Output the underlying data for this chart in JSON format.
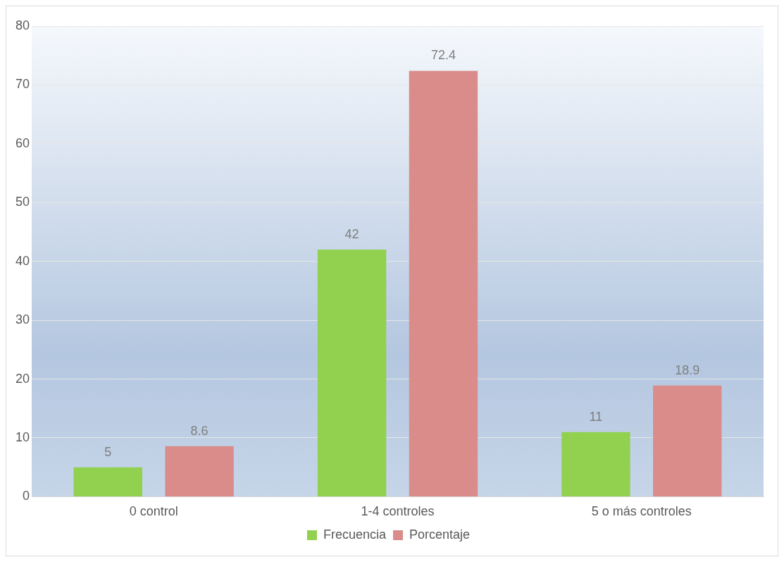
{
  "chart_data": {
    "type": "bar",
    "categories": [
      "0 control",
      "1-4 controles",
      "5 o más controles"
    ],
    "series": [
      {
        "name": "Frecuencia",
        "color": "#92d050",
        "values": [
          5,
          42,
          11
        ]
      },
      {
        "name": "Porcentaje",
        "color": "#d98c8a",
        "values": [
          8.6,
          72.4,
          18.9
        ]
      }
    ],
    "ylim": [
      0,
      80
    ],
    "yticks": [
      0,
      10,
      20,
      30,
      40,
      50,
      60,
      70,
      80
    ],
    "grid": "y",
    "legend": "bottom",
    "data_labels": true
  }
}
